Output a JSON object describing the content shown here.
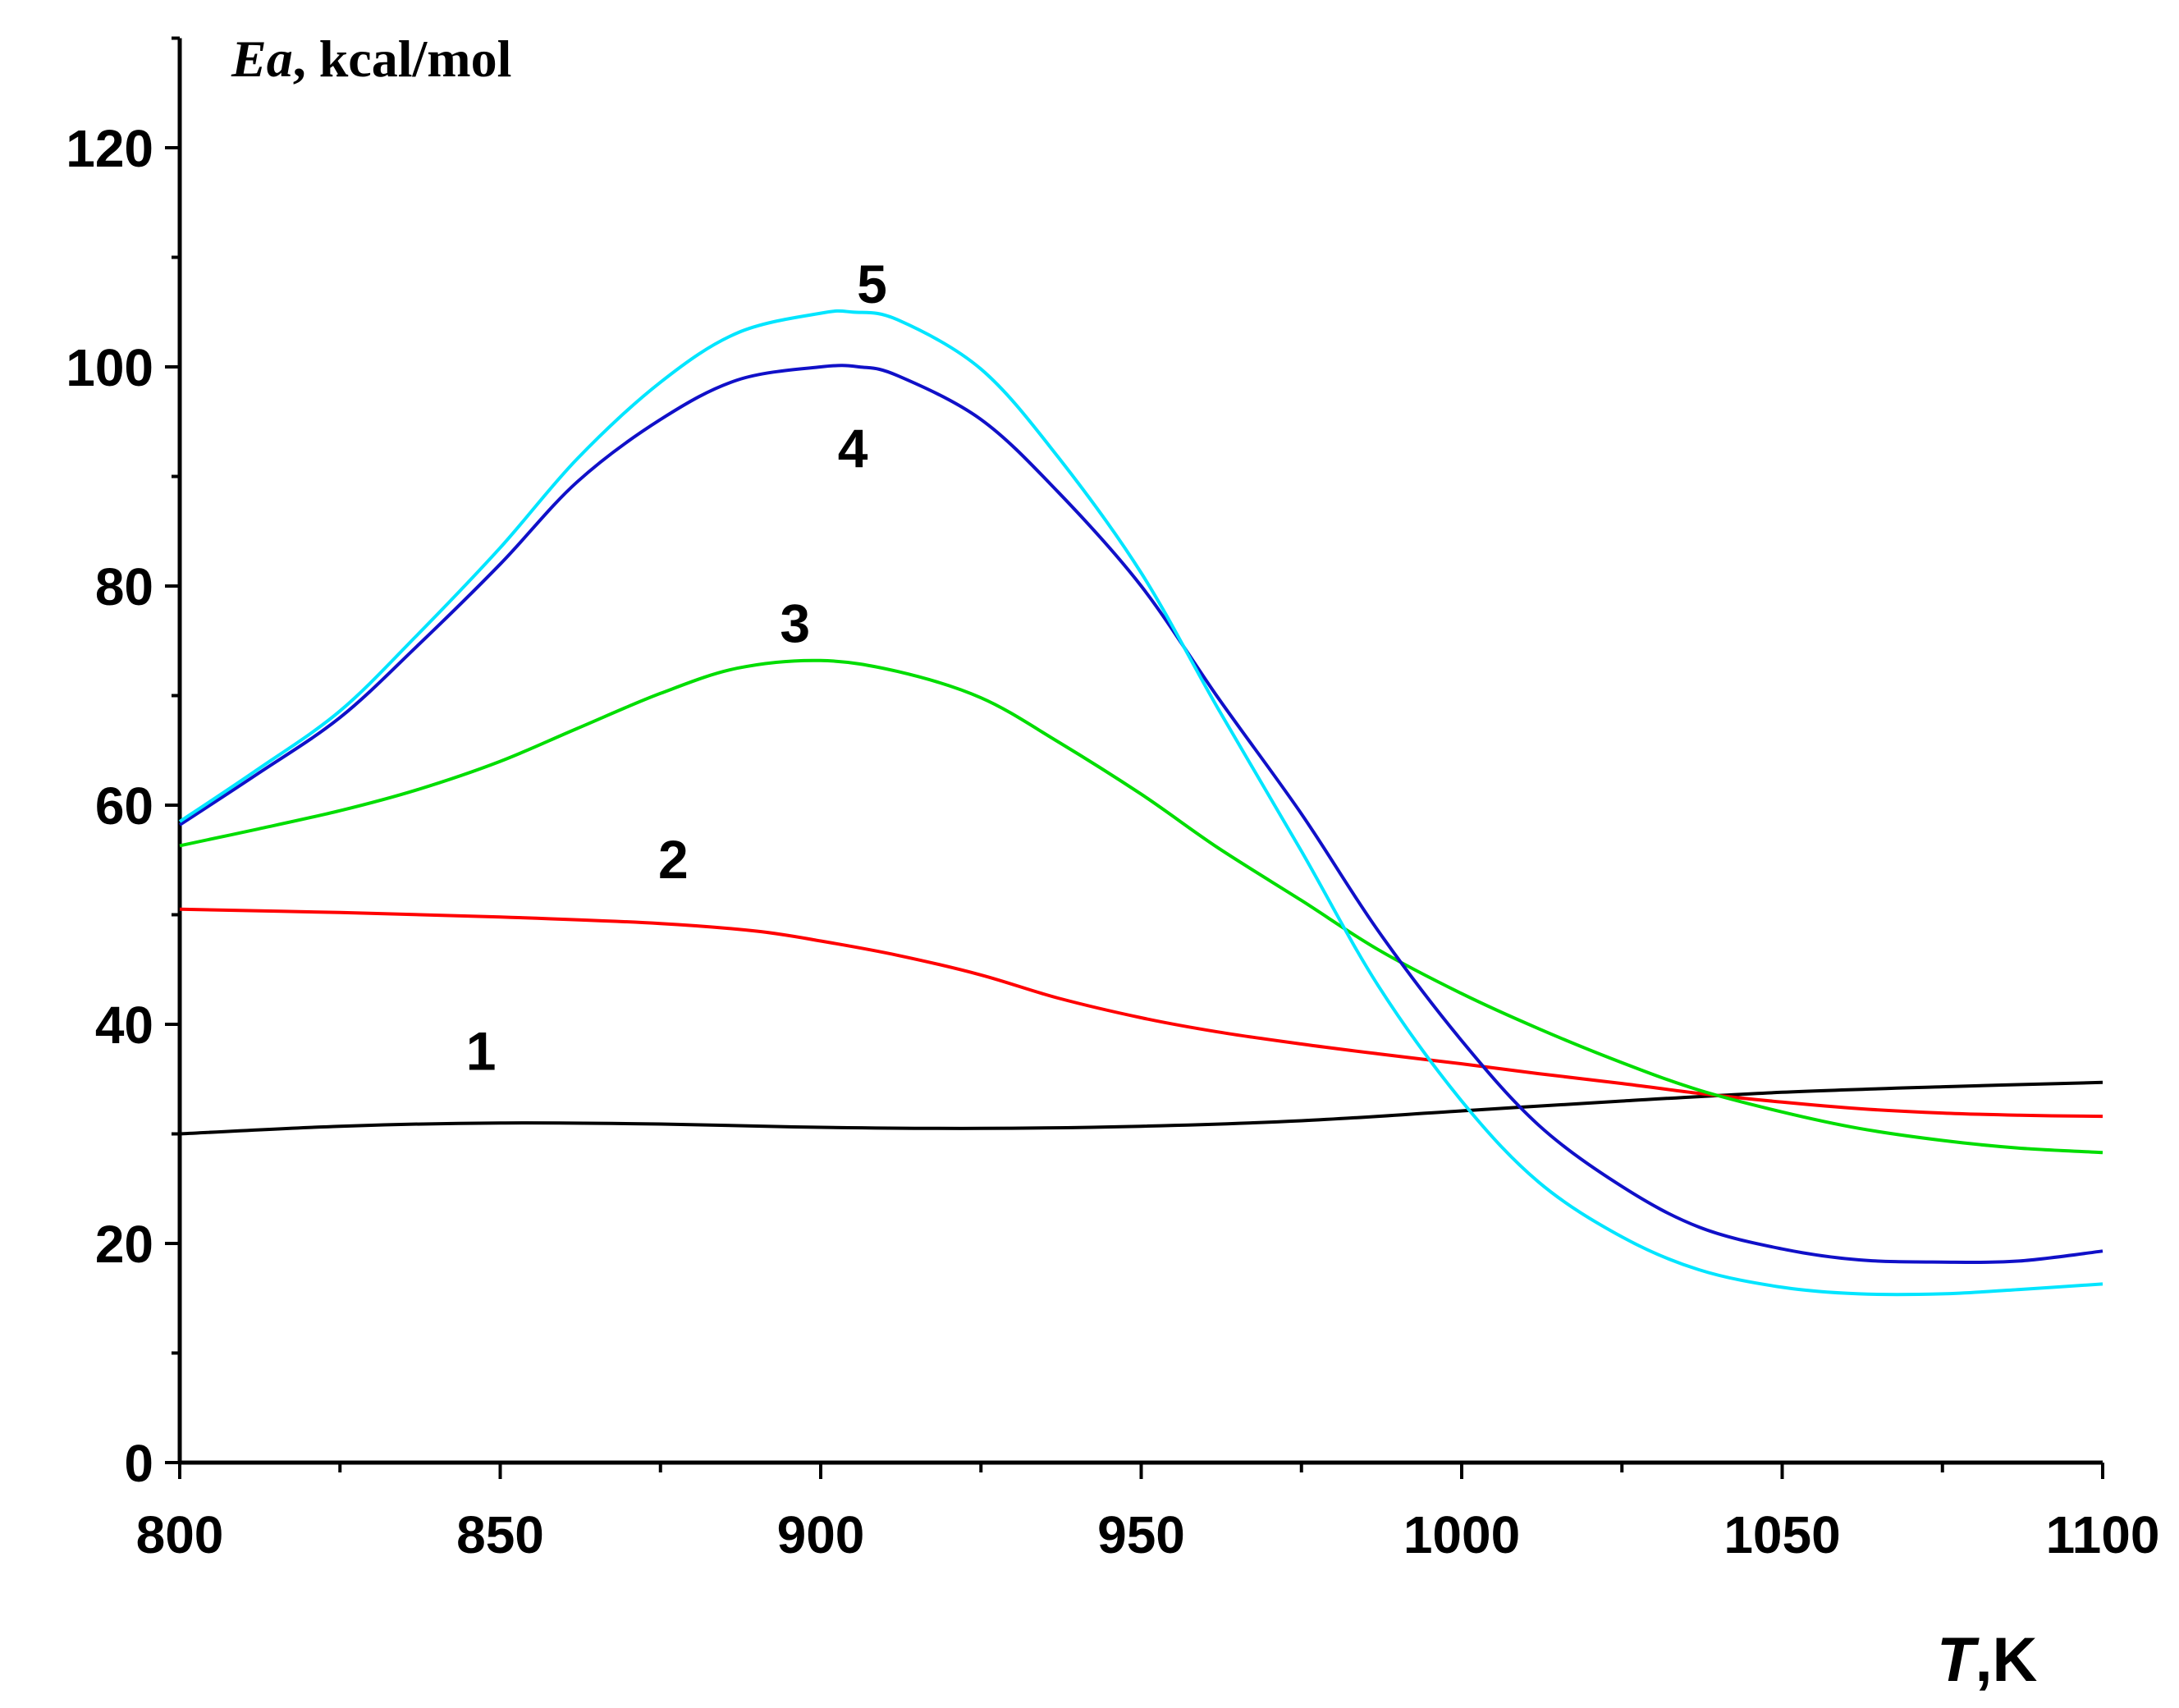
{
  "chart_data": {
    "type": "line",
    "title": "",
    "xlabel": {
      "italic": "T",
      "rest": ",K"
    },
    "ylabel": {
      "italic": "Ea",
      "rest": ", kcal/mol"
    },
    "xlim": [
      800,
      1100
    ],
    "ylim": [
      0,
      130
    ],
    "x_ticks": [
      800,
      850,
      900,
      950,
      1000,
      1050,
      1100
    ],
    "x_minor_ticks": [
      825,
      875,
      925,
      975,
      1025,
      1075
    ],
    "y_ticks": [
      0,
      20,
      40,
      60,
      80,
      100,
      120
    ],
    "y_minor_ticks": [
      10,
      30,
      50,
      70,
      90,
      110,
      130
    ],
    "grid": false,
    "series": [
      {
        "name": "1",
        "color": "#000000",
        "x": [
          800,
          825,
          850,
          875,
          900,
          925,
          950,
          975,
          1000,
          1025,
          1050,
          1075,
          1100
        ],
        "values": [
          30,
          30.7,
          31,
          30.9,
          30.6,
          30.5,
          30.7,
          31.2,
          32.1,
          33.0,
          33.8,
          34.3,
          34.7
        ],
        "label_at": [
          847,
          37.5
        ]
      },
      {
        "name": "2",
        "color": "#ff0000",
        "x": [
          800,
          825,
          850,
          875,
          890,
          900,
          912,
          925,
          937,
          950,
          962,
          975,
          987,
          1000,
          1012,
          1025,
          1037,
          1050,
          1062,
          1075,
          1087,
          1100
        ],
        "values": [
          50.5,
          50.2,
          49.8,
          49.2,
          48.5,
          47.6,
          46.3,
          44.5,
          42.4,
          40.6,
          39.3,
          38.2,
          37.3,
          36.4,
          35.5,
          34.6,
          33.7,
          32.9,
          32.3,
          31.9,
          31.7,
          31.6
        ],
        "label_at": [
          877,
          55
        ]
      },
      {
        "name": "3",
        "color": "#00dd00",
        "x": [
          800,
          812,
          825,
          837,
          850,
          862,
          875,
          887,
          900,
          912,
          925,
          937,
          950,
          962,
          975,
          987,
          1000,
          1012,
          1025,
          1037,
          1050,
          1062,
          1075,
          1087,
          1100
        ],
        "values": [
          56.3,
          57.8,
          59.5,
          61.4,
          64.0,
          67.0,
          70.2,
          72.5,
          73.2,
          72.2,
          69.8,
          65.8,
          61.0,
          56.1,
          51.3,
          46.8,
          42.8,
          39.6,
          36.5,
          34.0,
          32.0,
          30.5,
          29.4,
          28.7,
          28.3
        ],
        "label_at": [
          896,
          76.5
        ]
      },
      {
        "name": "4",
        "color": "#1010c8",
        "x": [
          800,
          812,
          825,
          837,
          850,
          862,
          875,
          887,
          900,
          906,
          912,
          925,
          937,
          950,
          962,
          975,
          987,
          1000,
          1012,
          1025,
          1037,
          1050,
          1062,
          1075,
          1087,
          1100
        ],
        "values": [
          58.2,
          62.8,
          68.0,
          74.5,
          82.0,
          89.5,
          95.2,
          98.8,
          100.0,
          100.0,
          99.2,
          95.2,
          88.6,
          80.0,
          69.8,
          59.2,
          48.5,
          38.5,
          30.8,
          25.2,
          21.5,
          19.5,
          18.5,
          18.3,
          18.4,
          19.3
        ],
        "label_at": [
          905,
          92.5
        ]
      },
      {
        "name": "5",
        "color": "#00e5ff",
        "x": [
          800,
          812,
          825,
          837,
          850,
          862,
          875,
          887,
          900,
          905,
          912,
          925,
          937,
          950,
          962,
          975,
          987,
          1000,
          1012,
          1025,
          1037,
          1050,
          1062,
          1075,
          1087,
          1100
        ],
        "values": [
          58.5,
          63.2,
          68.6,
          75.5,
          83.5,
          91.6,
          98.6,
          103.1,
          104.9,
          105.0,
          104.3,
          99.8,
          91.8,
          81.2,
          68.8,
          55.8,
          43.5,
          33.0,
          25.6,
          20.6,
          17.6,
          16.0,
          15.4,
          15.4,
          15.8,
          16.3
        ],
        "label_at": [
          908,
          107.5
        ]
      }
    ]
  }
}
